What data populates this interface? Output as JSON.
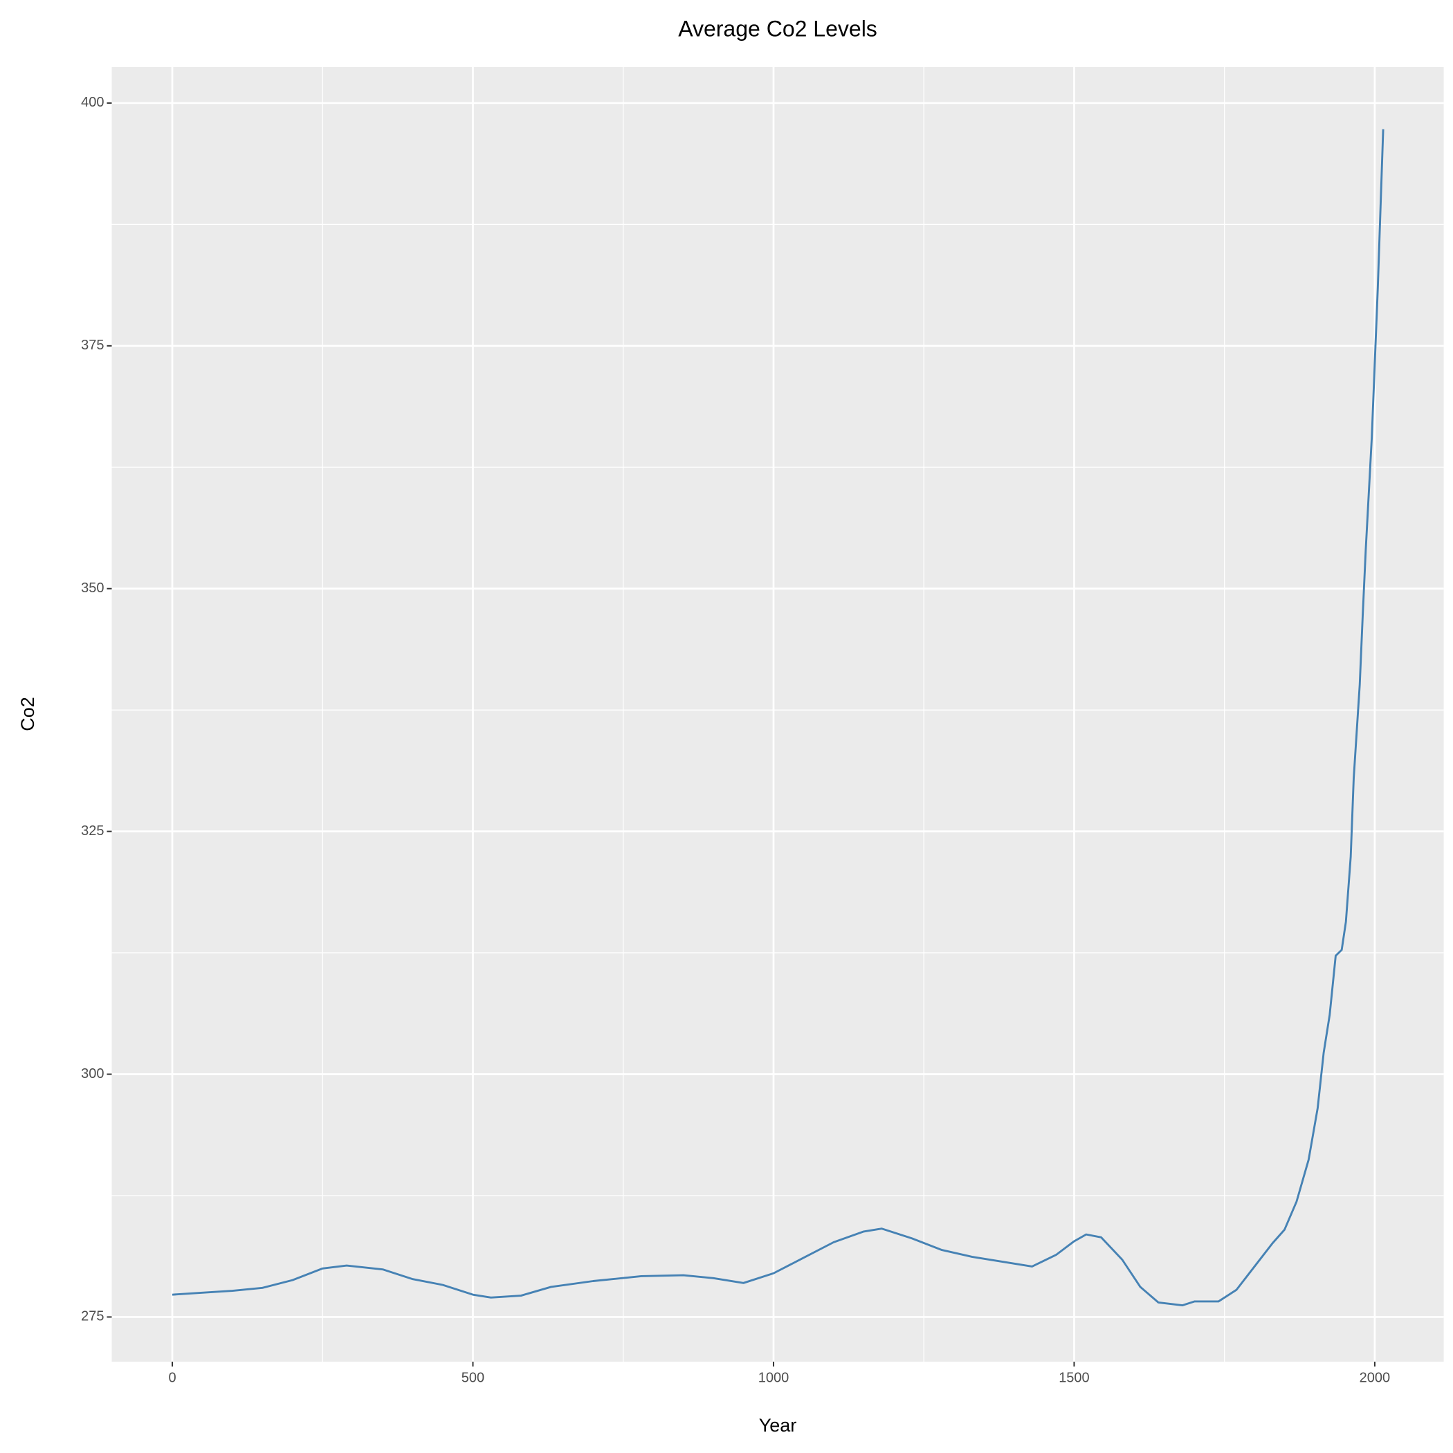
{
  "chart_data": {
    "type": "line",
    "title": "Average Co2 Levels",
    "x_label": "Year",
    "y_label": "Co2",
    "x": [
      0,
      50,
      100,
      150,
      200,
      250,
      290,
      350,
      400,
      450,
      500,
      530,
      580,
      630,
      700,
      780,
      850,
      900,
      950,
      1000,
      1050,
      1100,
      1150,
      1180,
      1230,
      1280,
      1330,
      1380,
      1430,
      1470,
      1500,
      1520,
      1545,
      1580,
      1610,
      1640,
      1680,
      1700,
      1740,
      1770,
      1800,
      1830,
      1850,
      1870,
      1890,
      1905,
      1915,
      1925,
      1935,
      1945,
      1952,
      1960,
      1965,
      1975,
      1980,
      1985,
      1995,
      2005,
      2014
    ],
    "series": [
      {
        "name": "Co2",
        "color": "#4682b4",
        "values": [
          277.3,
          277.5,
          277.7,
          278.0,
          278.8,
          280.0,
          280.3,
          279.9,
          278.9,
          278.3,
          277.3,
          277.0,
          277.2,
          278.1,
          278.7,
          279.2,
          279.3,
          279.0,
          278.5,
          279.5,
          281.1,
          282.7,
          283.8,
          284.1,
          283.1,
          281.9,
          281.2,
          280.7,
          280.2,
          281.4,
          282.8,
          283.5,
          283.2,
          280.9,
          278.1,
          276.5,
          276.2,
          276.6,
          276.6,
          277.8,
          280.2,
          282.6,
          284.0,
          286.9,
          291.2,
          296.5,
          302.2,
          306.1,
          312.2,
          312.8,
          315.7,
          322.4,
          330.5,
          340.1,
          347.3,
          354.0,
          365.5,
          380.9,
          397.3
        ]
      }
    ],
    "xlim": [
      -100.7,
      2114.7
    ],
    "xticks": [
      0,
      500,
      1000,
      1500,
      2000
    ],
    "ylim": [
      270.4,
      403.7
    ],
    "yticks": [
      275,
      300,
      325,
      350,
      375,
      400
    ],
    "grid": true,
    "background": "#ebebeb"
  }
}
